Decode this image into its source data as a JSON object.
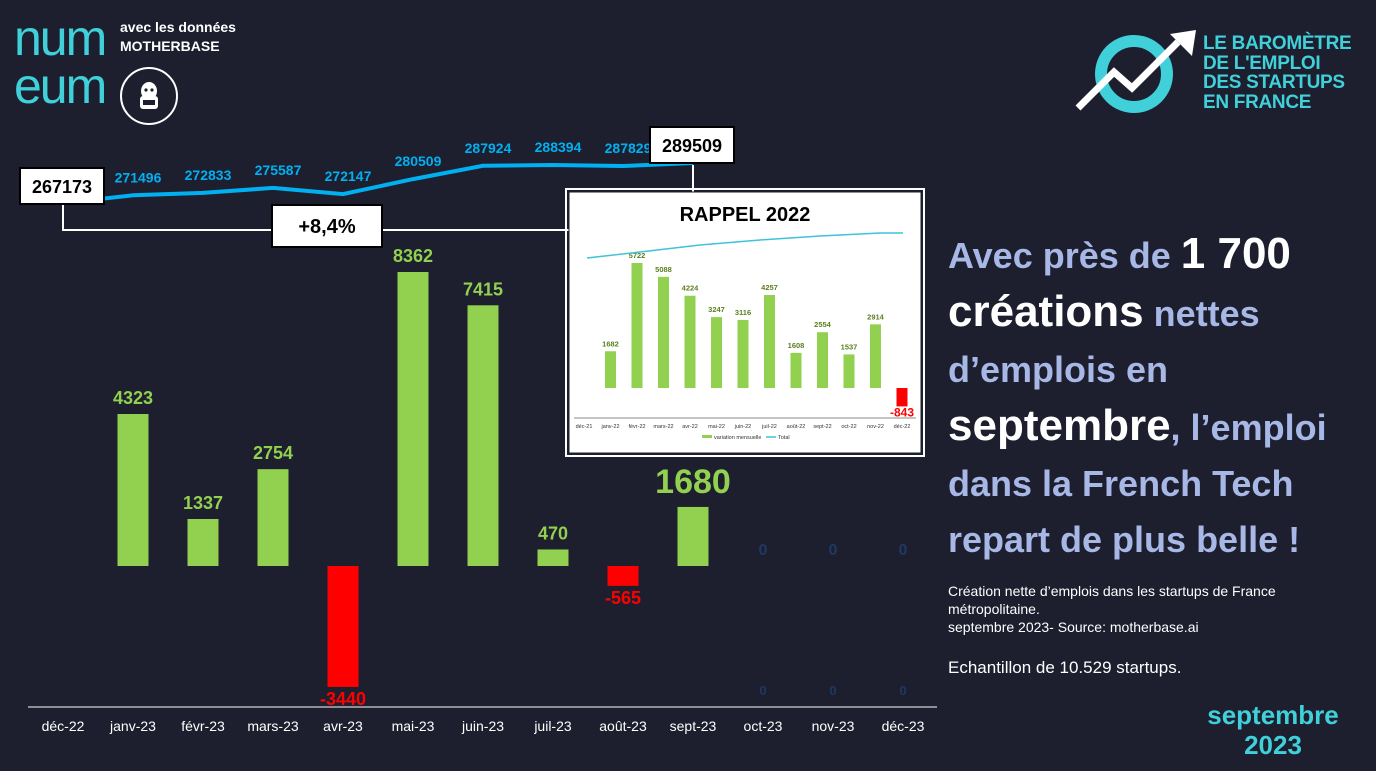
{
  "header": {
    "logo_line1": "num",
    "logo_line2": "eum",
    "data_credit_line1": "avec les données",
    "data_credit_line2": "MOTHERBASE",
    "barometre": [
      "LE BAROMÈTRE",
      "DE L'EMPLOI",
      "DES STARTUPS",
      "EN FRANCE"
    ]
  },
  "headline": {
    "p1": "Avec près de ",
    "n1": "1 700",
    "p2": "créations",
    "p3": " nettes d’emplois en ",
    "p4": "septembre",
    "p5": ", l’emploi dans la French Tech repart de plus belle !"
  },
  "source_text": {
    "line1": "Création nette d’emplois dans les startups de France métropolitaine.",
    "line2": "septembre 2023- Source: motherbase.ai",
    "sample": "Echantillon de 10.529 startups."
  },
  "footer": {
    "month": "septembre",
    "year": "2023"
  },
  "colors": {
    "background": "#1d1e2e",
    "bar_positive": "#92d050",
    "bar_negative": "#ff0000",
    "total_line": "#00b0f0",
    "accent": "#3fd0d9",
    "zero_label": "#1f3864"
  },
  "chart_data": [
    {
      "type": "bar",
      "categories": [
        "déc-22",
        "janv-23",
        "févr-23",
        "mars-23",
        "avr-23",
        "mai-23",
        "juin-23",
        "juil-23",
        "août-23",
        "sept-23",
        "oct-23",
        "nov-23",
        "déc-23"
      ],
      "series": [
        {
          "values": [
            null,
            4323,
            1337,
            2754,
            -3440,
            8362,
            7415,
            470,
            -565,
            1680,
            0,
            0,
            0
          ]
        }
      ],
      "totals": [
        267173,
        271496,
        272833,
        275587,
        272147,
        280509,
        287924,
        288394,
        287829,
        289509
      ],
      "growth_label": "+8,4%",
      "line_type": "line",
      "legend": "none"
    },
    {
      "type": "bar",
      "title": "RAPPEL 2022",
      "categories": [
        "déc-21",
        "janv-22",
        "févr-22",
        "mars-22",
        "avr-22",
        "mai-22",
        "juin-22",
        "juil-22",
        "août-22",
        "sept-22",
        "oct-22",
        "nov-22",
        "déc-22"
      ],
      "series": [
        {
          "name": "variation mensuelle",
          "values": [
            null,
            1682,
            5722,
            5088,
            4224,
            3247,
            3116,
            4257,
            1608,
            2554,
            1537,
            2914,
            -843
          ]
        },
        {
          "name": "Total"
        }
      ],
      "legend": "bottom"
    }
  ]
}
